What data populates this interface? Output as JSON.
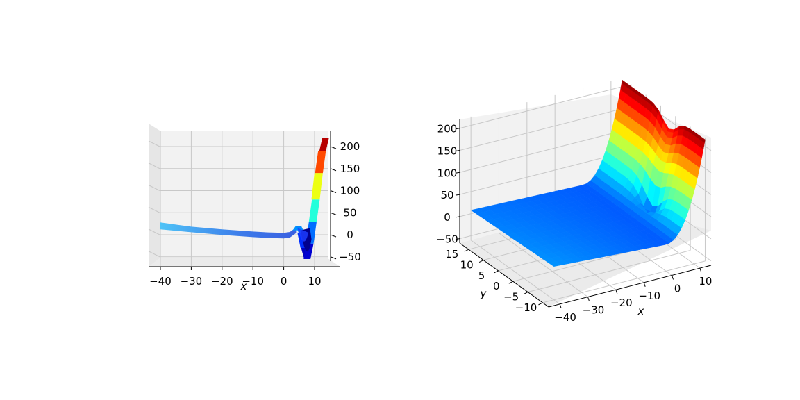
{
  "chart_data": [
    {
      "type": "surface",
      "view": "front (x–z)",
      "xlabel": "x",
      "x_ticks": [
        "−40",
        "−30",
        "−20",
        "−10",
        "0",
        "10"
      ],
      "z_ticks": [
        "−50",
        "0",
        "50",
        "100",
        "150",
        "200"
      ],
      "xlim": [
        -44,
        14
      ],
      "zlim": [
        -60,
        220
      ],
      "colormap": "jet",
      "profile_x": [
        -40,
        -30,
        -20,
        -10,
        -5,
        0,
        2,
        4,
        5,
        6,
        7,
        8,
        9,
        10,
        11,
        12,
        13,
        14
      ],
      "profile_z": [
        20,
        12,
        6,
        1,
        -1,
        -2,
        0,
        10,
        20,
        5,
        -30,
        -55,
        -20,
        30,
        80,
        140,
        190,
        220
      ]
    },
    {
      "type": "surface",
      "view": "perspective",
      "xlabel": "x",
      "ylabel": "y",
      "x_ticks": [
        "−40",
        "−30",
        "−20",
        "−10",
        "0",
        "10"
      ],
      "y_ticks": [
        "−10",
        "−5",
        "0",
        "5",
        "10",
        "15"
      ],
      "z_ticks": [
        "−50",
        "0",
        "50",
        "100",
        "150",
        "200"
      ],
      "xlim": [
        -44,
        14
      ],
      "ylim": [
        -12,
        18
      ],
      "zlim": [
        -60,
        220
      ],
      "colormap": "jet"
    }
  ]
}
